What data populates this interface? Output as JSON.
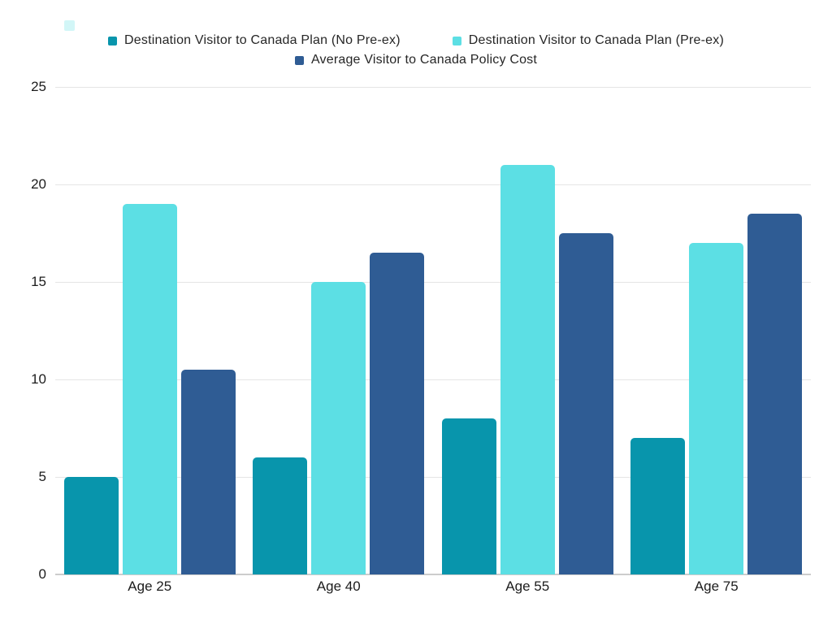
{
  "chart_data": {
    "type": "bar",
    "categories": [
      "Age 25",
      "Age 40",
      "Age 55",
      "Age 75"
    ],
    "series": [
      {
        "name": "Destination Visitor to Canada Plan (No Pre-ex)",
        "color": "#0895ac",
        "values": [
          5,
          6,
          8,
          7
        ]
      },
      {
        "name": "Destination Visitor to Canada Plan (Pre-ex)",
        "color": "#5cdfe4",
        "values": [
          19,
          15,
          21,
          17
        ]
      },
      {
        "name": "Average Visitor to Canada Policy Cost",
        "color": "#2f5c94",
        "values": [
          10.5,
          16.5,
          17.5,
          18.5
        ]
      }
    ],
    "title": "",
    "xlabel": "",
    "ylabel": "",
    "ylim": [
      0,
      25
    ],
    "yticks": [
      0,
      5,
      10,
      15,
      20,
      25
    ],
    "grid": true,
    "legend_position": "top-center"
  },
  "colors": {
    "background": "#ffffff",
    "gridline": "#e5e5e5",
    "axis_line": "#cccccc",
    "text": "#1c1c1c",
    "legend_text": "#262626"
  }
}
